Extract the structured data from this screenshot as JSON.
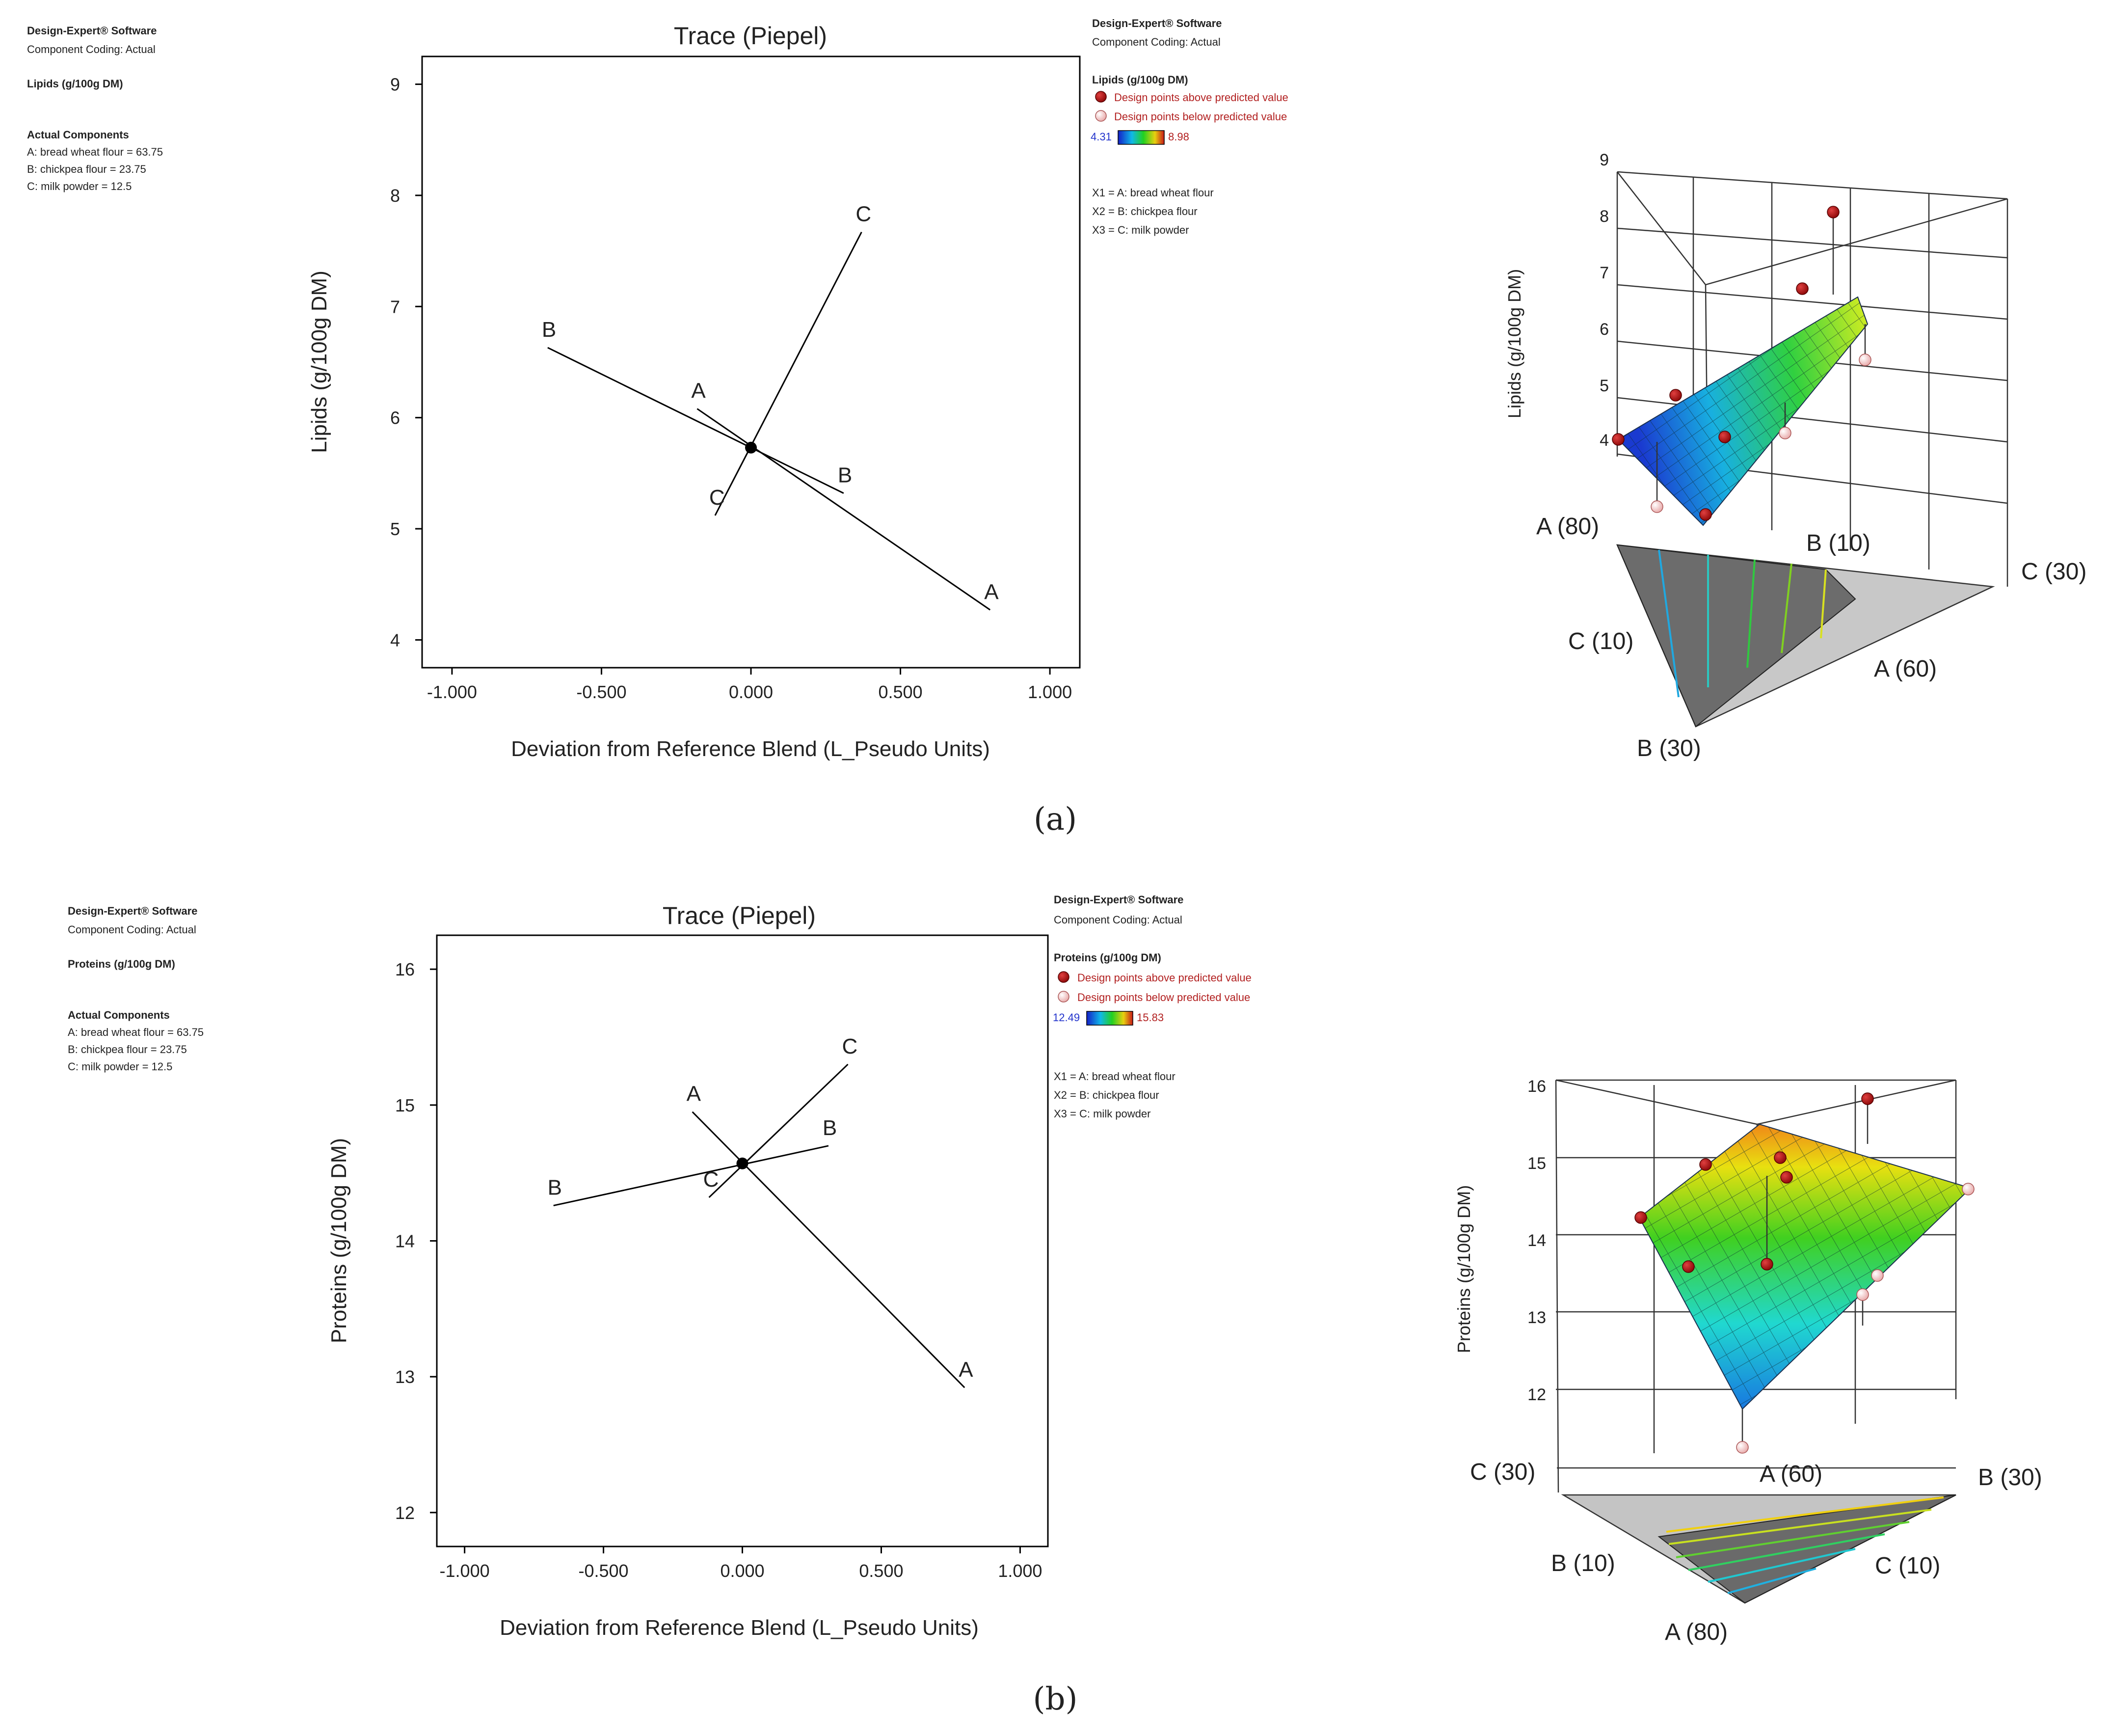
{
  "software": "Design-Expert® Software",
  "coding": "Component Coding: Actual",
  "panels": [
    {
      "label": "(a)",
      "response": "Lipids (g/100g DM)",
      "actual_components": {
        "heading": "Actual Components",
        "items": [
          "A: bread wheat flour = 63.75",
          "B: chickpea flour = 23.75",
          "C: milk powder = 12.5"
        ]
      },
      "legend": {
        "above": "Design points above predicted value",
        "below": "Design points below predicted value",
        "min": "4.31",
        "max": "8.98",
        "x_defs": [
          "X1 = A: bread wheat flour",
          "X2 = B: chickpea flour",
          "X3 = C: milk powder"
        ]
      },
      "surface": {
        "z_label": "Lipids (g/100g DM)",
        "z_ticks": [
          "4",
          "5",
          "6",
          "7",
          "8",
          "9"
        ],
        "vertex_labels": [
          "A (80)",
          "B (10)",
          "C (30)",
          "C (10)",
          "A (60)",
          "B (30)"
        ]
      }
    },
    {
      "label": "(b)",
      "response": "Proteins (g/100g DM)",
      "actual_components": {
        "heading": "Actual Components",
        "items": [
          "A: bread wheat flour = 63.75",
          "B: chickpea flour = 23.75",
          "C: milk powder = 12.5"
        ]
      },
      "legend": {
        "above": "Design points above predicted value",
        "below": "Design points below predicted value",
        "min": "12.49",
        "max": "15.83",
        "x_defs": [
          "X1 = A: bread wheat flour",
          "X2 = B: chickpea flour",
          "X3 = C: milk powder"
        ]
      },
      "surface": {
        "z_label": "Proteins (g/100g DM)",
        "z_ticks": [
          "12",
          "13",
          "14",
          "15",
          "16"
        ],
        "vertex_labels": [
          "C (30)",
          "A (60)",
          "B (30)",
          "B (10)",
          "C (10)",
          "A (80)"
        ]
      }
    }
  ],
  "chart_data": [
    {
      "type": "line",
      "title": "Trace (Piepel)",
      "xlabel": "Deviation from Reference Blend (L_Pseudo Units)",
      "ylabel": "Lipids (g/100g DM)",
      "xlim": [
        -1.1,
        1.1
      ],
      "ylim": [
        3.75,
        9.25
      ],
      "x_ticks": [
        "-1.000",
        "-0.500",
        "0.000",
        "0.500",
        "1.000"
      ],
      "y_ticks": [
        "4",
        "5",
        "6",
        "7",
        "8",
        "9"
      ],
      "reference_point": [
        0,
        5.73
      ],
      "series": [
        {
          "name": "A",
          "x": [
            -0.18,
            0.8
          ],
          "y": [
            6.08,
            4.27
          ]
        },
        {
          "name": "B",
          "x": [
            -0.68,
            0.31
          ],
          "y": [
            6.63,
            5.32
          ]
        },
        {
          "name": "C",
          "x": [
            -0.12,
            0.37
          ],
          "y": [
            5.12,
            7.67
          ]
        }
      ]
    },
    {
      "type": "line",
      "title": "Trace (Piepel)",
      "xlabel": "Deviation from Reference Blend (L_Pseudo Units)",
      "ylabel": "Proteins (g/100g DM)",
      "xlim": [
        -1.1,
        1.1
      ],
      "ylim": [
        11.75,
        16.25
      ],
      "x_ticks": [
        "-1.000",
        "-0.500",
        "0.000",
        "0.500",
        "1.000"
      ],
      "y_ticks": [
        "12",
        "13",
        "14",
        "15",
        "16"
      ],
      "reference_point": [
        0,
        14.57
      ],
      "series": [
        {
          "name": "A",
          "x": [
            -0.18,
            0.8
          ],
          "y": [
            14.95,
            12.92
          ]
        },
        {
          "name": "B",
          "x": [
            -0.68,
            0.31
          ],
          "y": [
            14.26,
            14.7
          ]
        },
        {
          "name": "C",
          "x": [
            -0.12,
            0.38
          ],
          "y": [
            14.32,
            15.3
          ]
        }
      ]
    }
  ]
}
